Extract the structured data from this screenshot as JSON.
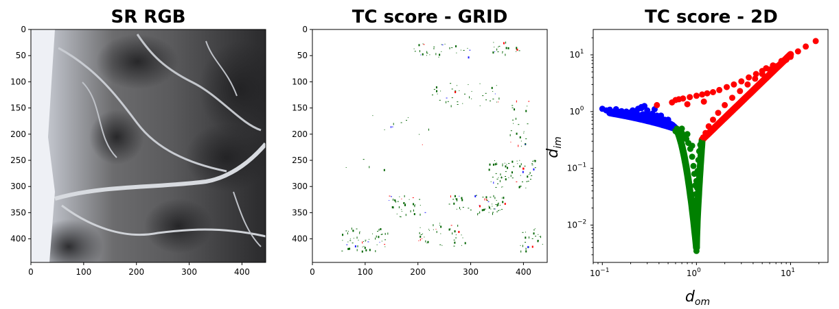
{
  "chart_data": [
    {
      "type": "image",
      "title": "SR RGB",
      "x_ticks": [
        "0",
        "100",
        "200",
        "300",
        "400"
      ],
      "y_ticks": [
        "0",
        "50",
        "100",
        "150",
        "200",
        "250",
        "300",
        "350",
        "400"
      ],
      "xlim": [
        0,
        445
      ],
      "ylim": [
        445,
        0
      ]
    },
    {
      "type": "image",
      "title": "TC score - GRID",
      "x_ticks": [
        "0",
        "100",
        "200",
        "300",
        "400"
      ],
      "y_ticks": [
        "0",
        "50",
        "100",
        "150",
        "200",
        "250",
        "300",
        "350",
        "400"
      ],
      "xlim": [
        0,
        445
      ],
      "ylim": [
        445,
        0
      ]
    },
    {
      "type": "scatter",
      "title": "TC score - 2D",
      "xlabel": "d",
      "xlabel_sub": "om",
      "ylabel": "d",
      "ylabel_sub": "im",
      "xscale": "log",
      "yscale": "log",
      "xlim": [
        0.08,
        25
      ],
      "ylim": [
        0.0022,
        28
      ],
      "x_ticks": [
        {
          "base": "10",
          "exp": "−1"
        },
        {
          "base": "10",
          "exp": "0"
        },
        {
          "base": "10",
          "exp": "1"
        }
      ],
      "y_ticks": [
        {
          "base": "10",
          "exp": "−2"
        },
        {
          "base": "10",
          "exp": "−1"
        },
        {
          "base": "10",
          "exp": "0"
        },
        {
          "base": "10",
          "exp": "1"
        }
      ],
      "series": [
        {
          "color": "#0000ff",
          "x": [
            0.1,
            0.11,
            0.12,
            0.13,
            0.14,
            0.15,
            0.16,
            0.17,
            0.18,
            0.19,
            0.2,
            0.21,
            0.22,
            0.23,
            0.24,
            0.25,
            0.26,
            0.27,
            0.28,
            0.29,
            0.3,
            0.32,
            0.34,
            0.36,
            0.38,
            0.4,
            0.42,
            0.44,
            0.46,
            0.48,
            0.5,
            0.52,
            0.54,
            0.56,
            0.58,
            0.6,
            0.15,
            0.22,
            0.26,
            0.3,
            0.36,
            0.42,
            0.5
          ],
          "y": [
            1.12,
            1.05,
            1.08,
            0.98,
            1.1,
            0.95,
            1.02,
            0.92,
            1.0,
            0.9,
            0.97,
            1.05,
            0.88,
            0.95,
            1.12,
            0.86,
            1.2,
            0.9,
            1.25,
            0.84,
            1.05,
            0.8,
            0.92,
            0.78,
            0.85,
            0.74,
            0.8,
            0.7,
            0.72,
            0.66,
            0.68,
            0.62,
            0.6,
            0.58,
            0.55,
            0.52,
            0.98,
            0.92,
            1.15,
            0.9,
            1.1,
            0.85,
            0.72
          ]
        },
        {
          "color": "#008000",
          "x": [
            0.62,
            0.66,
            0.7,
            0.74,
            0.78,
            0.82,
            0.86,
            0.9,
            0.93,
            0.95,
            0.97,
            0.98,
            0.99,
            1.0,
            1.0,
            1.0,
            1.0,
            1.0,
            1.0,
            1.0,
            1.01,
            1.02,
            1.03,
            1.05,
            1.07,
            1.1,
            1.14,
            0.6,
            0.7,
            0.8,
            0.9,
            1.0,
            1.0,
            1.0
          ],
          "y": [
            0.5,
            0.46,
            0.42,
            0.38,
            0.33,
            0.28,
            0.22,
            0.16,
            0.11,
            0.08,
            0.05,
            0.035,
            0.025,
            0.018,
            0.013,
            0.0095,
            0.0065,
            0.005,
            0.0035,
            0.0075,
            0.02,
            0.045,
            0.09,
            0.14,
            0.2,
            0.26,
            0.3,
            0.45,
            0.5,
            0.4,
            0.25,
            0.012,
            0.028,
            0.06
          ]
        },
        {
          "color": "#ff0000",
          "x": [
            1.18,
            1.25,
            1.35,
            1.5,
            1.7,
            2.0,
            2.4,
            2.9,
            3.5,
            4.2,
            5.0,
            6.0,
            7.0,
            8.0,
            9.0,
            10.0,
            0.38,
            0.55,
            0.6,
            0.65,
            0.72,
            0.85,
            1.0,
            1.15,
            1.3,
            1.5,
            1.75,
            2.1,
            2.5,
            3.0,
            3.6,
            4.3,
            5.0,
            5.5,
            6.5,
            8.0,
            10.0,
            12.0,
            14.5,
            18.5,
            0.8,
            1.2
          ],
          "y": [
            0.35,
            0.42,
            0.55,
            0.72,
            0.95,
            1.3,
            1.75,
            2.3,
            3.0,
            3.8,
            4.6,
            5.5,
            6.3,
            7.2,
            8.2,
            9.2,
            1.3,
            1.45,
            1.6,
            1.65,
            1.7,
            1.8,
            1.9,
            2.0,
            2.1,
            2.2,
            2.4,
            2.7,
            3.0,
            3.4,
            4.0,
            4.6,
            5.2,
            5.8,
            6.5,
            7.8,
            9.5,
            11.5,
            14.0,
            17.5,
            1.35,
            1.5
          ]
        }
      ]
    }
  ]
}
